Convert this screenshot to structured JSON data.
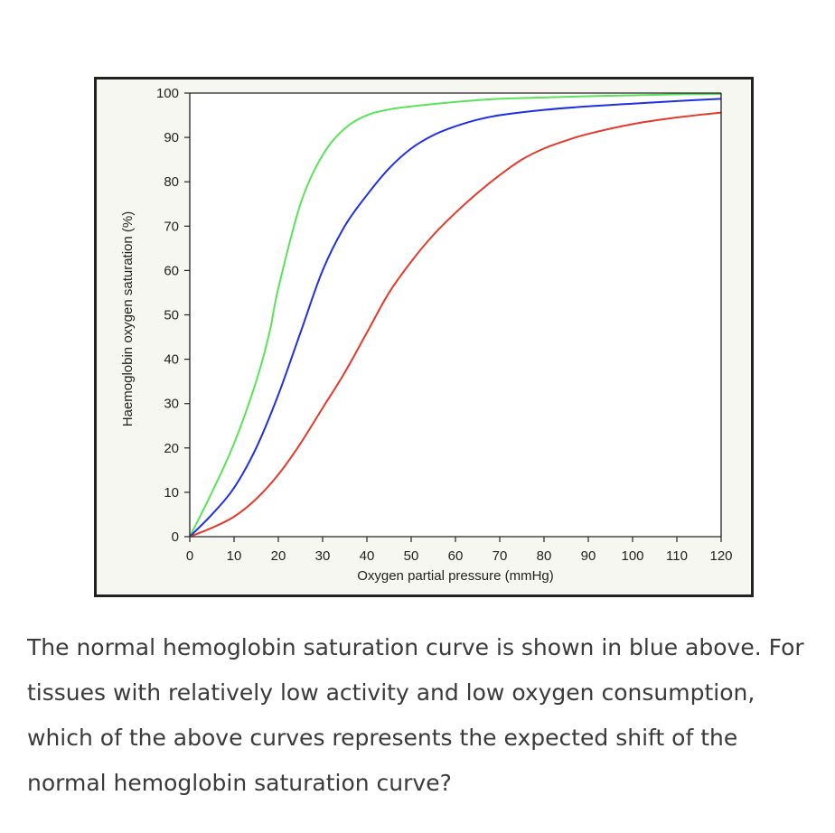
{
  "chart_data": {
    "type": "line",
    "xlabel": "Oxygen partial pressure (mmHg)",
    "ylabel": "Haemoglobin oxygen saturation (%)",
    "xlim": [
      0,
      120
    ],
    "ylim": [
      0,
      100
    ],
    "xticks": [
      0,
      10,
      20,
      30,
      40,
      50,
      60,
      70,
      80,
      90,
      100,
      110,
      120
    ],
    "yticks": [
      0,
      10,
      20,
      30,
      40,
      50,
      60,
      70,
      80,
      90,
      100
    ],
    "grid": false,
    "series": [
      {
        "color": "#59e35a",
        "x": [
          0,
          5,
          10,
          15,
          18,
          20,
          25,
          30,
          35,
          40,
          45,
          50,
          60,
          70,
          80,
          90,
          100,
          110,
          120
        ],
        "y": [
          0,
          10,
          21,
          35,
          46,
          56,
          75,
          86,
          92,
          95,
          96.3,
          97,
          98,
          98.7,
          99,
          99.3,
          99.5,
          99.7,
          99.8
        ]
      },
      {
        "color": "#1f2fe6",
        "x": [
          0,
          5,
          10,
          15,
          20,
          25,
          30,
          35,
          40,
          45,
          50,
          55,
          60,
          65,
          70,
          80,
          90,
          100,
          110,
          120
        ],
        "y": [
          0,
          5,
          11,
          20,
          32,
          46,
          60,
          70,
          77,
          83,
          87.5,
          90.5,
          92.5,
          94,
          95,
          96.2,
          97,
          97.6,
          98.2,
          98.7
        ]
      },
      {
        "color": "#e33a2a",
        "x": [
          0,
          5,
          10,
          15,
          20,
          25,
          30,
          35,
          40,
          45,
          50,
          55,
          60,
          65,
          70,
          75,
          80,
          85,
          90,
          100,
          110,
          120
        ],
        "y": [
          0,
          2,
          4.5,
          8.5,
          14,
          21,
          29,
          37,
          46,
          55,
          62,
          68,
          73,
          77.5,
          81.5,
          85,
          87.5,
          89.3,
          90.8,
          93,
          94.5,
          95.6
        ]
      }
    ]
  },
  "question": {
    "text": "The normal hemoglobin saturation curve is shown in blue above.  For tissues with relatively low activity and low oxygen consumption, which of the above curves represents the expected shift of the normal hemoglobin saturation curve?"
  }
}
